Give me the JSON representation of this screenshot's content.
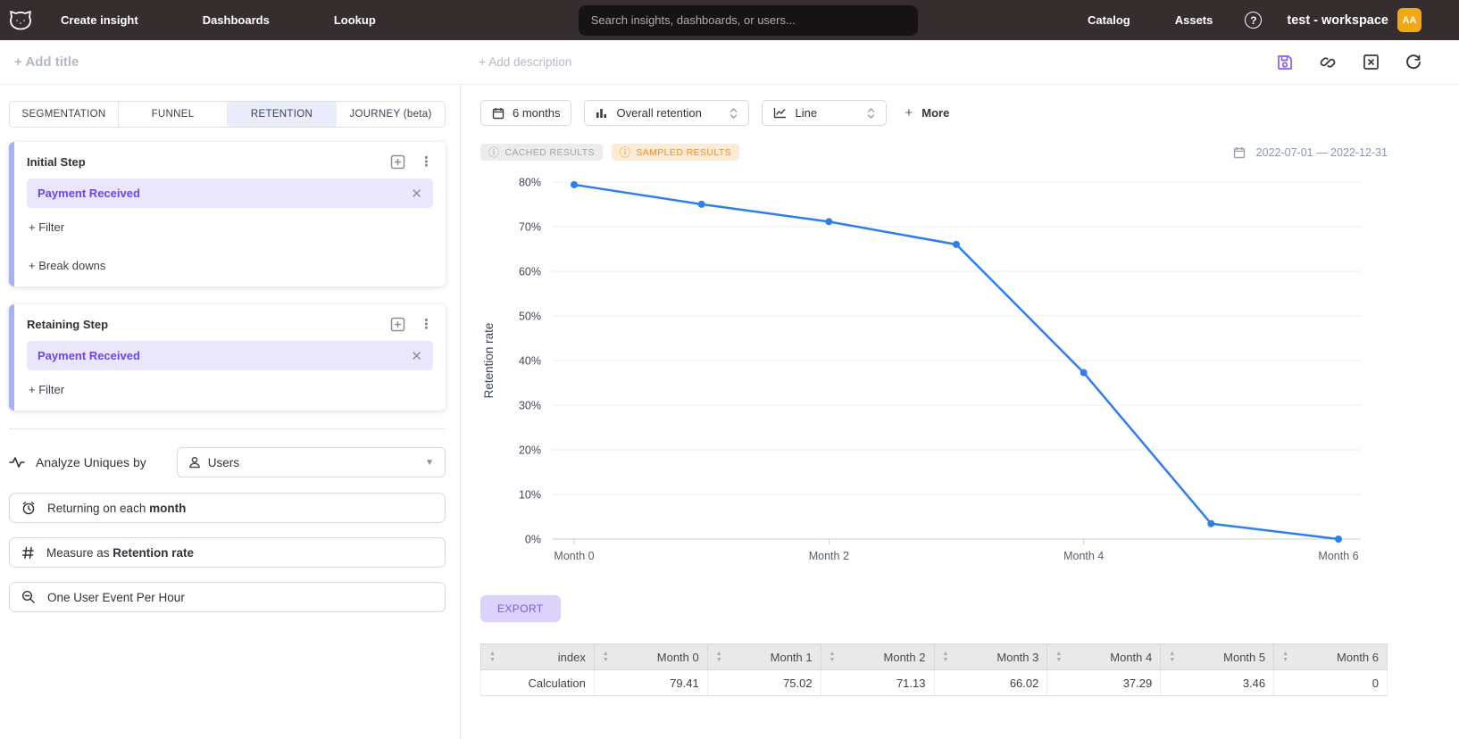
{
  "navbar": {
    "links": [
      {
        "label": "Create insight"
      },
      {
        "label": "Dashboards"
      },
      {
        "label": "Lookup"
      }
    ],
    "search_placeholder": "Search insights, dashboards, or users...",
    "right_links": [
      {
        "label": "Catalog"
      },
      {
        "label": "Assets"
      }
    ],
    "help_glyph": "?",
    "workspace_name": "test - workspace",
    "avatar_initials": "AA"
  },
  "titlebar": {
    "add_title": "+ Add title",
    "add_description": "+ Add description",
    "icons": [
      "save-icon",
      "link-icon",
      "close-square-icon",
      "refresh-icon"
    ]
  },
  "sidebar": {
    "tabs": [
      {
        "label": "SEGMENTATION",
        "active": false
      },
      {
        "label": "FUNNEL",
        "active": false
      },
      {
        "label": "RETENTION",
        "active": true
      },
      {
        "label": "JOURNEY (beta)",
        "active": false
      }
    ],
    "initial_step": {
      "title": "Initial Step",
      "event": "Payment Received",
      "add_filter": "+ Filter",
      "add_breakdowns": "+ Break downs"
    },
    "retaining_step": {
      "title": "Retaining Step",
      "event": "Payment Received",
      "add_filter": "+ Filter"
    },
    "analyze": {
      "label": "Analyze Uniques by",
      "value": "Users"
    },
    "returning": {
      "prefix": "Returning on each ",
      "bold": "month"
    },
    "measure": {
      "prefix": "Measure as ",
      "bold": "Retention rate"
    },
    "aggregation": {
      "label": "One User Event Per Hour"
    }
  },
  "toolbar": {
    "time_window": "6 months",
    "retention_type": "Overall retention",
    "chart_type": "Line",
    "more_plus": "+",
    "more_label": "More"
  },
  "status": {
    "cached_badge": "CACHED RESULTS",
    "sampled_badge": "SAMPLED RESULTS",
    "info_glyph": "ⓘ",
    "date_range": "2022-07-01 — 2022-12-31"
  },
  "chart_data": {
    "type": "line",
    "x": [
      "Month 0",
      "Month 1",
      "Month 2",
      "Month 3",
      "Month 4",
      "Month 5",
      "Month 6"
    ],
    "x_tick_labels_shown": [
      "Month 0",
      "Month 2",
      "Month 4",
      "Month 6"
    ],
    "series": [
      {
        "name": "Retention rate",
        "values": [
          79.41,
          75.02,
          71.13,
          66.02,
          37.29,
          3.46,
          0
        ]
      }
    ],
    "title": "",
    "xlabel": "",
    "ylabel": "Retention rate",
    "ylim": [
      0,
      80
    ],
    "y_tick_step": 10,
    "y_tick_suffix": "%",
    "grid": true,
    "legend": false,
    "line_color": "#2e7fe8"
  },
  "export_label": "EXPORT",
  "results_table": {
    "columns": [
      "index",
      "Month 0",
      "Month 1",
      "Month 2",
      "Month 3",
      "Month 4",
      "Month 5",
      "Month 6"
    ],
    "rows": [
      [
        "Calculation",
        "79.41",
        "75.02",
        "71.13",
        "66.02",
        "37.29",
        "3.46",
        "0"
      ]
    ]
  },
  "colors": {
    "navbar_bg": "#362e2e",
    "accent_purple": "#6d46e4",
    "chip_bg": "#eae7fc",
    "step_bar": "#a9b0f6",
    "active_tab_bg": "#e9ecfb",
    "line_blue": "#2e7fe8",
    "sampled_badge_bg": "#fdebd4",
    "sampled_badge_text": "#ef8d26",
    "export_bg": "#ddd2fa",
    "avatar_bg": "#f2a816"
  }
}
